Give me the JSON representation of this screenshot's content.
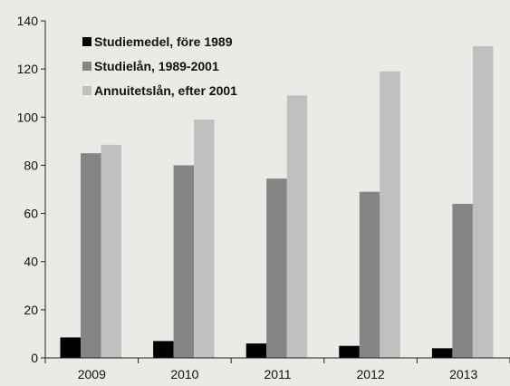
{
  "chart_data": {
    "type": "bar",
    "categories": [
      "2009",
      "2010",
      "2011",
      "2012",
      "2013"
    ],
    "series": [
      {
        "name": "Studiemedel, före 1989",
        "color": "#000000",
        "values": [
          8.5,
          7,
          6,
          5,
          4
        ]
      },
      {
        "name": "Studielån, 1989-2001",
        "color": "#858585",
        "values": [
          85,
          80,
          74.5,
          69,
          64
        ]
      },
      {
        "name": "Annuitetslån, efter 2001",
        "color": "#c0c0c0",
        "values": [
          88.5,
          99,
          109,
          119,
          129.5
        ]
      }
    ],
    "ylim": [
      0,
      140
    ],
    "yticks": [
      0,
      20,
      40,
      60,
      80,
      100,
      120,
      140
    ],
    "title": "",
    "xlabel": "",
    "ylabel": "",
    "grid": false,
    "legend_position": "top-left"
  }
}
